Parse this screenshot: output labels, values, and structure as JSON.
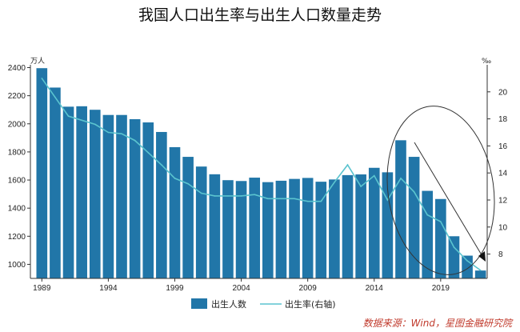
{
  "chart_data": {
    "type": "bar",
    "title": "我国人口出生率与出生人口数量走势",
    "left_unit": "万人",
    "right_unit": "‰",
    "source": "数据来源：Wind，星图金融研究院",
    "categories": [
      "1989",
      "1990",
      "1991",
      "1992",
      "1993",
      "1994",
      "1995",
      "1996",
      "1997",
      "1998",
      "1999",
      "2000",
      "2001",
      "2002",
      "2003",
      "2004",
      "2005",
      "2006",
      "2007",
      "2008",
      "2009",
      "2010",
      "2011",
      "2012",
      "2013",
      "2014",
      "2015",
      "2016",
      "2017",
      "2018",
      "2019",
      "2020",
      "2021",
      "2022"
    ],
    "x_tick_labels": [
      "1989",
      "1994",
      "1999",
      "2004",
      "2009",
      "2014",
      "2019"
    ],
    "series": [
      {
        "name": "出生人数",
        "axis": "left",
        "type": "bar",
        "color": "#2176a8",
        "values": [
          2396,
          2258,
          2122,
          2125,
          2100,
          2063,
          2063,
          2033,
          2010,
          1942,
          1834,
          1765,
          1696,
          1641,
          1599,
          1593,
          1617,
          1585,
          1595,
          1608,
          1615,
          1588,
          1604,
          1635,
          1640,
          1687,
          1655,
          1883,
          1765,
          1523,
          1465,
          1200,
          1062,
          956
        ]
      },
      {
        "name": "出生率(右轴)",
        "axis": "right",
        "type": "line",
        "color": "#5bc4cf",
        "values": [
          21.0,
          19.6,
          18.2,
          17.9,
          17.6,
          17.0,
          16.9,
          16.4,
          15.5,
          14.6,
          13.6,
          13.2,
          12.5,
          12.3,
          12.3,
          12.3,
          12.4,
          12.1,
          12.1,
          12.1,
          11.9,
          11.9,
          13.3,
          14.6,
          13.0,
          13.8,
          12.0,
          13.6,
          12.6,
          10.9,
          10.4,
          8.5,
          7.5,
          6.8
        ]
      }
    ],
    "left_axis": {
      "ylim": [
        900,
        2420
      ],
      "ticks": [
        1000,
        1200,
        1400,
        1600,
        1800,
        2000,
        2200,
        2400
      ]
    },
    "right_axis": {
      "ylim": [
        6.2,
        22.0
      ],
      "ticks": [
        8,
        10,
        12,
        14,
        16,
        18,
        20
      ]
    },
    "legend_position": "bottom"
  }
}
